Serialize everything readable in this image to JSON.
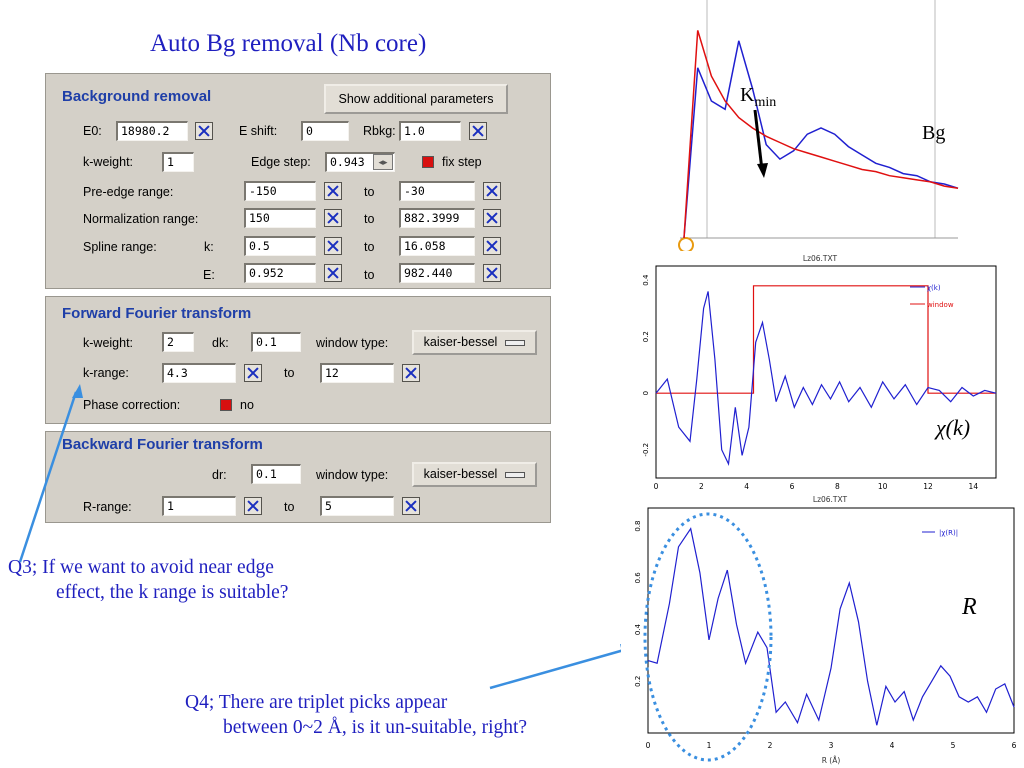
{
  "slide": {
    "title": "Auto Bg removal (Nb core)",
    "q3_line1": "Q3; If we want to avoid near edge",
    "q3_line2": "effect, the k range is suitable?",
    "q4_line1": "Q4; There are triplet picks appear",
    "q4_line2": "between 0~2 Å, is it un-suitable, right?"
  },
  "background_removal": {
    "title": "Background removal",
    "show_params_button": "Show additional parameters",
    "e0_label": "E0:",
    "e0_value": "18980.2",
    "eshift_label": "E shift:",
    "eshift_value": "0",
    "rbkg_label": "Rbkg:",
    "rbkg_value": "1.0",
    "kweight_label": "k-weight:",
    "kweight_value": "1",
    "edgestep_label": "Edge step:",
    "edgestep_value": "0.943",
    "fixstep_label": "fix step",
    "preedge_label": "Pre-edge range:",
    "preedge_from": "-150",
    "preedge_to": "-30",
    "norm_label": "Normalization range:",
    "norm_from": "150",
    "norm_to": "882.3999",
    "spline_label": "Spline range:",
    "spline_k_label": "k:",
    "spline_k_from": "0.5",
    "spline_k_to": "16.058",
    "spline_e_label": "E:",
    "spline_e_from": "0.952",
    "spline_e_to": "982.440",
    "to": "to"
  },
  "forward_ft": {
    "title": "Forward Fourier transform",
    "kweight_label": "k-weight:",
    "kweight_value": "2",
    "dk_label": "dk:",
    "dk_value": "0.1",
    "window_label": "window type:",
    "window_value": "kaiser-bessel",
    "krange_label": "k-range:",
    "krange_from": "4.3",
    "krange_to": "12",
    "to": "to",
    "phase_label": "Phase correction:",
    "phase_value": "no"
  },
  "backward_ft": {
    "title": "Backward Fourier transform",
    "dr_label": "dr:",
    "dr_value": "0.1",
    "window_label": "window type:",
    "window_value": "kaiser-bessel",
    "rrange_label": "R-range:",
    "rrange_from": "1",
    "rrange_to": "5",
    "to": "to"
  },
  "colors": {
    "accent_blue": "#1f1fbf",
    "panel": "#d4d0c8",
    "plot_blue": "#2020d0",
    "plot_red": "#e01010",
    "annotation_blue": "#3a8fe0"
  },
  "chart_data": [
    {
      "type": "line",
      "label_kmin_main": "K",
      "label_kmin_sub": "min",
      "label_bg": "Bg",
      "series": [
        {
          "x": [
            0,
            1,
            2,
            3,
            4,
            5,
            6,
            7,
            8,
            9,
            10,
            11,
            12,
            13,
            14,
            15,
            16,
            17,
            18,
            19,
            20
          ],
          "y": [
            0,
            0.82,
            0.66,
            0.62,
            0.95,
            0.72,
            0.45,
            0.38,
            0.42,
            0.5,
            0.53,
            0.5,
            0.44,
            0.4,
            0.36,
            0.34,
            0.31,
            0.3,
            0.27,
            0.26,
            0.24
          ]
        },
        {
          "x": [
            0,
            1,
            2,
            3,
            4,
            5,
            6,
            7,
            8,
            9,
            10,
            11,
            12,
            13,
            14,
            15,
            16,
            17,
            18,
            19,
            20
          ],
          "y": [
            0,
            1.0,
            0.78,
            0.66,
            0.58,
            0.53,
            0.49,
            0.46,
            0.43,
            0.41,
            0.39,
            0.37,
            0.35,
            0.33,
            0.32,
            0.3,
            0.29,
            0.28,
            0.27,
            0.25,
            0.24
          ]
        }
      ],
      "ylim": [
        0,
        1.05
      ],
      "xlim": [
        0,
        20
      ]
    },
    {
      "type": "line",
      "title": "Lz06.TXT",
      "xlim": [
        0,
        15
      ],
      "ylim": [
        -0.3,
        0.45
      ],
      "xticks": [
        "0",
        "2",
        "4",
        "6",
        "8",
        "10",
        "12",
        "14"
      ],
      "yticks": [
        "-0.2",
        "0",
        "0.2",
        "0.4"
      ],
      "legend": [
        "χ(k)",
        "window"
      ],
      "label_chi": "χ(k)",
      "series": [
        {
          "name": "χ(k)",
          "x": [
            0,
            0.5,
            1,
            1.5,
            1.8,
            2.1,
            2.3,
            2.6,
            2.9,
            3.2,
            3.5,
            3.8,
            4.1,
            4.4,
            4.7,
            5.0,
            5.3,
            5.7,
            6.1,
            6.5,
            6.9,
            7.3,
            7.7,
            8.1,
            8.5,
            9.0,
            9.5,
            10.0,
            10.5,
            11.0,
            11.5,
            12.0,
            12.5,
            13.0,
            13.5,
            14.0,
            14.5,
            15
          ],
          "y": [
            0,
            0.05,
            -0.12,
            -0.17,
            0.05,
            0.3,
            0.36,
            0.12,
            -0.2,
            -0.25,
            -0.05,
            -0.22,
            -0.12,
            0.18,
            0.25,
            0.12,
            -0.03,
            0.06,
            -0.05,
            0.02,
            -0.04,
            0.03,
            -0.02,
            0.04,
            -0.03,
            0.02,
            -0.05,
            0.04,
            -0.02,
            0.03,
            -0.04,
            0.02,
            0.01,
            -0.03,
            0.02,
            -0.01,
            0.01,
            0
          ]
        },
        {
          "name": "window",
          "x": [
            0,
            4.3,
            4.3,
            12,
            12,
            15
          ],
          "y": [
            0,
            0,
            0.38,
            0.38,
            0,
            0
          ]
        }
      ]
    },
    {
      "type": "line",
      "title": "Lz06.TXT",
      "xlabel": "R (Å)",
      "xlim": [
        0,
        6
      ],
      "ylim": [
        0,
        0.87
      ],
      "xticks": [
        "0",
        "1",
        "2",
        "3",
        "4",
        "5",
        "6"
      ],
      "yticks": [
        "0.2",
        "0.4",
        "0.6",
        "0.8"
      ],
      "legend": [
        "|χ(R)|"
      ],
      "label_r": "R",
      "series": [
        {
          "name": "|χ(R)|",
          "x": [
            0,
            0.15,
            0.35,
            0.5,
            0.7,
            0.85,
            1.0,
            1.15,
            1.3,
            1.45,
            1.6,
            1.8,
            1.95,
            2.1,
            2.25,
            2.45,
            2.6,
            2.8,
            3.0,
            3.15,
            3.3,
            3.45,
            3.6,
            3.75,
            3.9,
            4.05,
            4.2,
            4.35,
            4.5,
            4.65,
            4.8,
            4.95,
            5.1,
            5.25,
            5.4,
            5.55,
            5.7,
            5.85,
            6.0
          ],
          "y": [
            0.28,
            0.27,
            0.5,
            0.72,
            0.79,
            0.62,
            0.36,
            0.52,
            0.63,
            0.42,
            0.27,
            0.39,
            0.33,
            0.08,
            0.12,
            0.04,
            0.15,
            0.05,
            0.25,
            0.48,
            0.58,
            0.43,
            0.2,
            0.03,
            0.18,
            0.12,
            0.16,
            0.05,
            0.14,
            0.2,
            0.26,
            0.22,
            0.14,
            0.12,
            0.14,
            0.08,
            0.17,
            0.19,
            0.1
          ]
        }
      ]
    }
  ]
}
